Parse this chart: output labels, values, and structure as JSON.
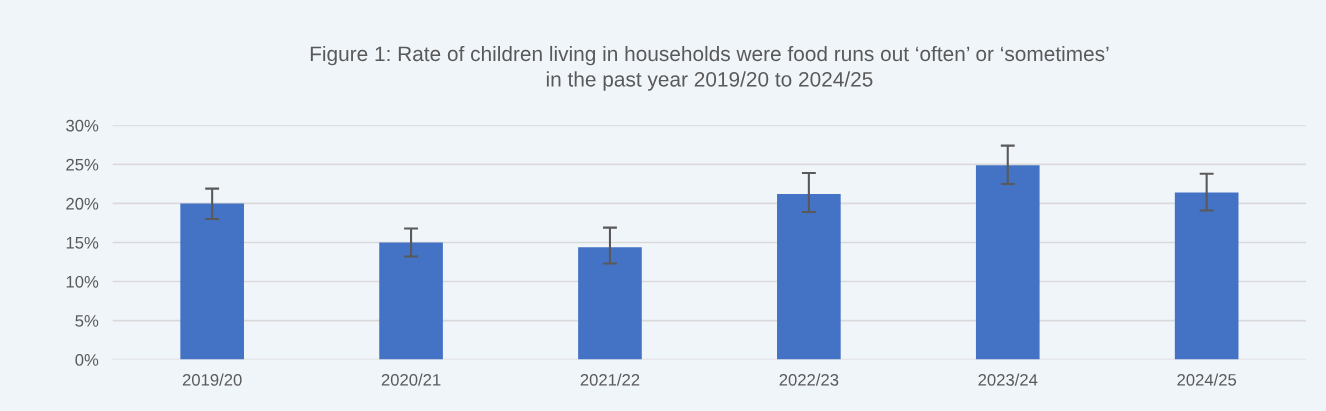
{
  "chart_data": {
    "type": "bar",
    "title": "Figure 1: Rate of children living in households were food runs out ‘often’ or ‘sometimes’\nin the past year 2019/20 to 2024/25",
    "categories": [
      "2019/20",
      "2020/21",
      "2021/22",
      "2022/23",
      "2023/24",
      "2024/25"
    ],
    "values": [
      20.0,
      15.0,
      14.4,
      21.2,
      24.9,
      21.4
    ],
    "errors": [
      [
        18.0,
        21.9
      ],
      [
        13.2,
        16.8
      ],
      [
        12.3,
        16.9
      ],
      [
        18.9,
        23.9
      ],
      [
        22.5,
        27.4
      ],
      [
        19.1,
        23.8
      ]
    ],
    "color": "#4472c4",
    "ylim": [
      0,
      30
    ],
    "yticks": [
      {
        "value": 0,
        "label": "0%"
      },
      {
        "value": 5,
        "label": "5%"
      },
      {
        "value": 10,
        "label": "10%"
      },
      {
        "value": 15,
        "label": "15%"
      },
      {
        "value": 20,
        "label": "20%"
      },
      {
        "value": 25,
        "label": "25%"
      },
      {
        "value": 30,
        "label": "30%"
      }
    ],
    "grid": "y",
    "legend": false
  }
}
